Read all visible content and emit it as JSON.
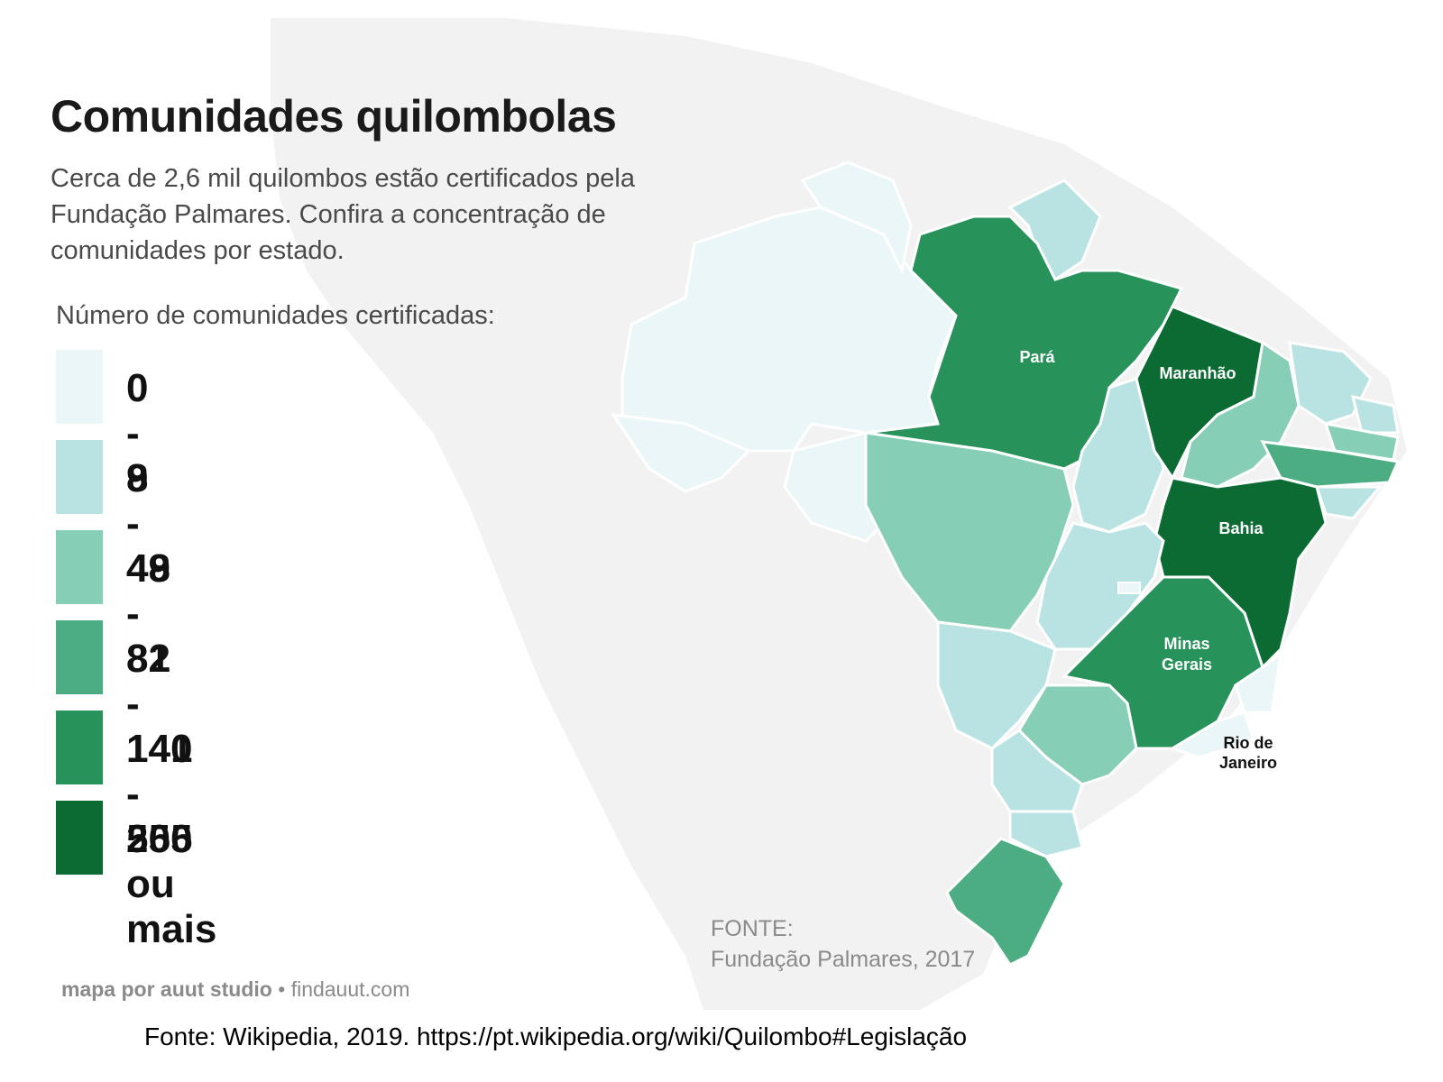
{
  "title": "Comunidades quilombolas",
  "subtitle": "Cerca de 2,6 mil quilombos estão certificados pela Fundação Palmares. Confira a concentração de comunidades por estado.",
  "legend": {
    "title": "Número de comunidades certificadas:",
    "items": [
      {
        "label": "0 - 8",
        "color": "#eaf6f7"
      },
      {
        "label": "9 - 48",
        "color": "#b9e3e2"
      },
      {
        "label": "49 - 81",
        "color": "#86cfb6"
      },
      {
        "label": "82 - 140",
        "color": "#4cad83"
      },
      {
        "label": "141 - 255",
        "color": "#27925a"
      },
      {
        "label": "500 ou mais",
        "color": "#0b6b33"
      }
    ]
  },
  "state_labels": {
    "para": "Pará",
    "maranhao": "Maranhão",
    "bahia": "Bahia",
    "minas_line1": "Minas",
    "minas_line2": "Gerais",
    "rio_line1": "Rio de",
    "rio_line2": "Janeiro"
  },
  "source": {
    "title": "FONTE:",
    "text": "Fundação Palmares, 2017"
  },
  "credit": {
    "brand": "mapa por auut studio",
    "dot": "•",
    "site": "findauut.com"
  },
  "footer": "Fonte: Wikipedia, 2019. https://pt.wikipedia.org/wiki/Quilombo#Legislação",
  "colors": {
    "background_land": "#f2f2f2",
    "border": "#ffffff"
  }
}
